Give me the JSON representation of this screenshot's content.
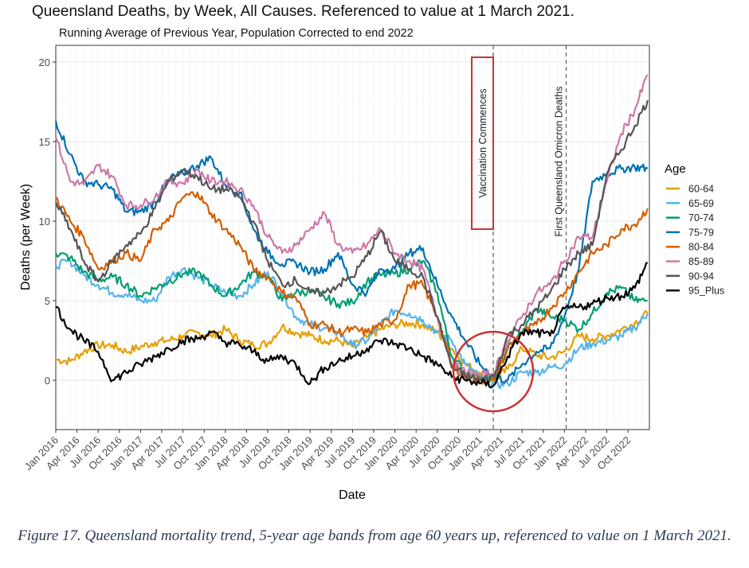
{
  "chart_data": {
    "type": "line",
    "title": "Queensland Deaths, by Week, All Causes. Referenced to value at 1 March 2021.",
    "subtitle": "Running Average of Previous Year, Population Corrected to end 2022",
    "xlabel": "Date",
    "ylabel": "Deaths (per Week)",
    "xlim": [
      2016.0,
      2022.98
    ],
    "ylim": [
      -3,
      21
    ],
    "yticks": [
      0,
      5,
      10,
      15,
      20
    ],
    "xtick_labels": [
      "Jan 2016",
      "Apr 2016",
      "Jul 2016",
      "Oct 2016",
      "Jan 2017",
      "Apr 2017",
      "Jul 2017",
      "Oct 2017",
      "Jan 2018",
      "Apr 2018",
      "Jul 2018",
      "Oct 2018",
      "Jan 2019",
      "Apr 2019",
      "Jul 2019",
      "Oct 2019",
      "Jan 2020",
      "Apr 2020",
      "Jul 2020",
      "Oct 2020",
      "Jan 2021",
      "Apr 2021",
      "Jul 2021",
      "Oct 2021",
      "Jan 2022",
      "Apr 2022",
      "Jul 2022",
      "Oct 2022"
    ],
    "grid": true,
    "legend": {
      "title": "Age",
      "position": "right"
    },
    "x": [
      2016.0,
      2016.17,
      2016.33,
      2016.5,
      2016.67,
      2016.83,
      2017.0,
      2017.17,
      2017.33,
      2017.5,
      2017.67,
      2017.83,
      2018.0,
      2018.17,
      2018.33,
      2018.5,
      2018.67,
      2018.83,
      2019.0,
      2019.17,
      2019.33,
      2019.5,
      2019.67,
      2019.83,
      2020.0,
      2020.17,
      2020.33,
      2020.5,
      2020.67,
      2020.83,
      2021.0,
      2021.17,
      2021.33,
      2021.5,
      2021.67,
      2021.83,
      2022.0,
      2022.17,
      2022.33,
      2022.5,
      2022.67,
      2022.83,
      2022.98
    ],
    "series": [
      {
        "name": "60-64",
        "color": "#E69F00",
        "values": [
          1.3,
          1.2,
          1.8,
          2.2,
          2.2,
          1.8,
          2.1,
          2.4,
          2.5,
          2.8,
          3.0,
          2.8,
          3.2,
          2.5,
          2.2,
          2.3,
          3.4,
          3.0,
          2.8,
          2.5,
          2.5,
          2.1,
          2.7,
          3.2,
          3.5,
          3.6,
          3.5,
          3.0,
          2.0,
          1.0,
          0.5,
          0.0,
          0.7,
          2.0,
          1.6,
          1.4,
          1.8,
          2.8,
          2.6,
          2.8,
          3.2,
          3.6,
          4.2
        ]
      },
      {
        "name": "65-69",
        "color": "#56B4E9",
        "values": [
          7.2,
          7.5,
          6.6,
          6.0,
          5.5,
          5.4,
          5.0,
          5.0,
          6.5,
          7.0,
          6.5,
          6.0,
          5.5,
          5.3,
          6.0,
          6.8,
          5.5,
          4.0,
          3.5,
          3.3,
          3.0,
          2.2,
          2.5,
          3.5,
          4.4,
          4.2,
          3.8,
          3.0,
          2.5,
          1.0,
          0.2,
          -0.3,
          -0.2,
          0.5,
          0.5,
          0.8,
          1.0,
          2.0,
          2.3,
          2.5,
          2.8,
          3.3,
          4.2
        ]
      },
      {
        "name": "70-74",
        "color": "#009E73",
        "values": [
          8.0,
          7.7,
          6.8,
          6.3,
          6.5,
          6.0,
          5.3,
          5.8,
          6.2,
          6.7,
          6.8,
          6.0,
          5.3,
          6.0,
          6.8,
          6.5,
          5.0,
          5.5,
          5.6,
          5.2,
          4.8,
          4.9,
          6.2,
          6.6,
          6.7,
          7.0,
          7.5,
          5.5,
          1.5,
          0.5,
          0.2,
          0.0,
          2.0,
          3.0,
          4.5,
          4.0,
          3.8,
          3.2,
          4.2,
          5.5,
          5.8,
          5.0,
          5.0
        ]
      },
      {
        "name": "75-79",
        "color": "#0072B2",
        "values": [
          16.3,
          14.2,
          12.5,
          12.3,
          12.0,
          10.6,
          10.6,
          11.2,
          12.6,
          13.0,
          13.5,
          14.0,
          12.3,
          11.8,
          9.5,
          8.0,
          7.3,
          7.4,
          6.8,
          7.0,
          8.0,
          6.0,
          5.5,
          7.0,
          7.0,
          8.0,
          8.3,
          6.0,
          4.0,
          2.5,
          1.0,
          0.2,
          0.0,
          1.0,
          1.8,
          2.0,
          4.0,
          7.0,
          12.5,
          13.0,
          13.3,
          13.4,
          13.3
        ]
      },
      {
        "name": "80-84",
        "color": "#D55E00",
        "values": [
          11.5,
          10.0,
          9.0,
          7.0,
          7.5,
          8.0,
          7.5,
          9.5,
          10.0,
          11.5,
          11.8,
          10.5,
          9.5,
          8.5,
          7.0,
          6.5,
          5.5,
          5.2,
          3.5,
          3.5,
          3.0,
          3.2,
          3.0,
          3.5,
          3.8,
          6.0,
          6.0,
          4.0,
          1.0,
          0.2,
          0.0,
          0.0,
          2.0,
          3.0,
          3.5,
          4.5,
          5.5,
          6.8,
          8.0,
          8.5,
          9.5,
          9.8,
          10.8
        ]
      },
      {
        "name": "85-89",
        "color": "#CC79A7",
        "values": [
          15.3,
          12.5,
          12.3,
          13.5,
          12.8,
          11.0,
          11.0,
          11.5,
          12.5,
          12.4,
          13.2,
          12.5,
          12.5,
          12.0,
          11.0,
          9.0,
          8.0,
          8.5,
          9.5,
          10.5,
          8.5,
          8.0,
          8.5,
          9.5,
          8.0,
          7.5,
          7.0,
          4.0,
          1.0,
          0.5,
          0.3,
          0.5,
          2.5,
          4.0,
          5.5,
          6.0,
          7.5,
          9.0,
          9.0,
          12.5,
          15.5,
          17.0,
          19.2
        ]
      },
      {
        "name": "90-94",
        "color": "#555555",
        "values": [
          11.2,
          9.5,
          7.5,
          6.2,
          7.5,
          8.5,
          9.2,
          10.8,
          12.5,
          13.2,
          12.8,
          12.0,
          12.0,
          11.5,
          10.0,
          7.5,
          6.0,
          6.3,
          5.5,
          5.5,
          6.0,
          6.5,
          7.8,
          9.4,
          7.5,
          7.0,
          6.5,
          4.0,
          0.8,
          0.3,
          0.0,
          0.2,
          2.8,
          3.5,
          4.5,
          5.5,
          7.0,
          8.0,
          8.5,
          13.0,
          14.5,
          16.0,
          17.6
        ]
      },
      {
        "name": "95_Plus",
        "color": "#000000",
        "values": [
          4.6,
          3.2,
          2.5,
          1.8,
          0.0,
          0.5,
          1.0,
          1.5,
          2.0,
          2.5,
          2.6,
          3.0,
          2.4,
          2.2,
          1.8,
          1.2,
          1.5,
          1.0,
          -0.2,
          0.8,
          1.2,
          1.5,
          2.0,
          2.5,
          2.3,
          2.0,
          1.5,
          1.0,
          0.2,
          0.0,
          -0.2,
          -0.3,
          1.5,
          3.0,
          3.0,
          2.8,
          4.5,
          4.6,
          4.8,
          5.2,
          5.3,
          5.8,
          7.4
        ]
      }
    ],
    "annotations": [
      {
        "type": "vline",
        "x": 2021.16,
        "label": "Vaccination Commences",
        "boxed": true,
        "box_color": "#CC3333"
      },
      {
        "type": "vline",
        "x": 2022.02,
        "label": "First Queensland Omicron Deaths",
        "boxed": false
      },
      {
        "type": "circle",
        "x": 2021.16,
        "y": 0.5,
        "color": "#D03030"
      }
    ]
  },
  "caption": "Figure 17. Queensland mortality trend, 5-year age bands from age 60 years up, referenced to value on 1 March 2021."
}
